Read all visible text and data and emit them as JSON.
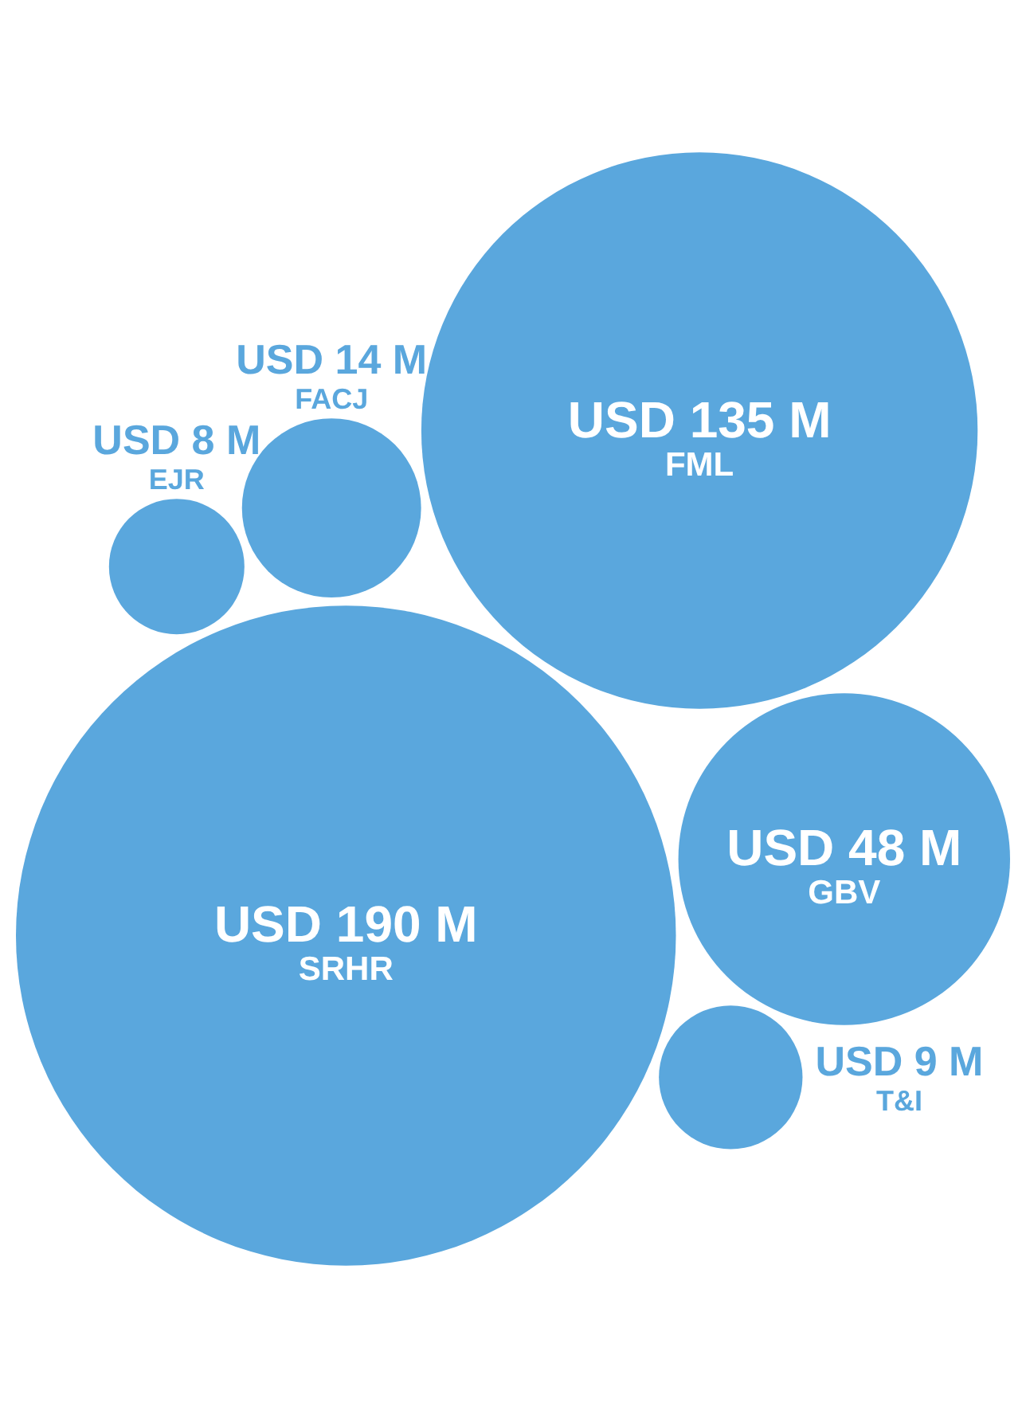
{
  "chart_data": {
    "type": "other",
    "categories": [
      "SRHR",
      "FML",
      "GBV",
      "FACJ",
      "T&I",
      "EJR"
    ],
    "values": [
      190,
      135,
      48,
      14,
      9,
      8
    ],
    "value_labels": [
      "USD 190 M",
      "USD 135 M",
      "USD 48 M",
      "USD 14 M",
      "USD 9 M",
      "USD 8 M"
    ],
    "color": "#5aa7dd"
  }
}
